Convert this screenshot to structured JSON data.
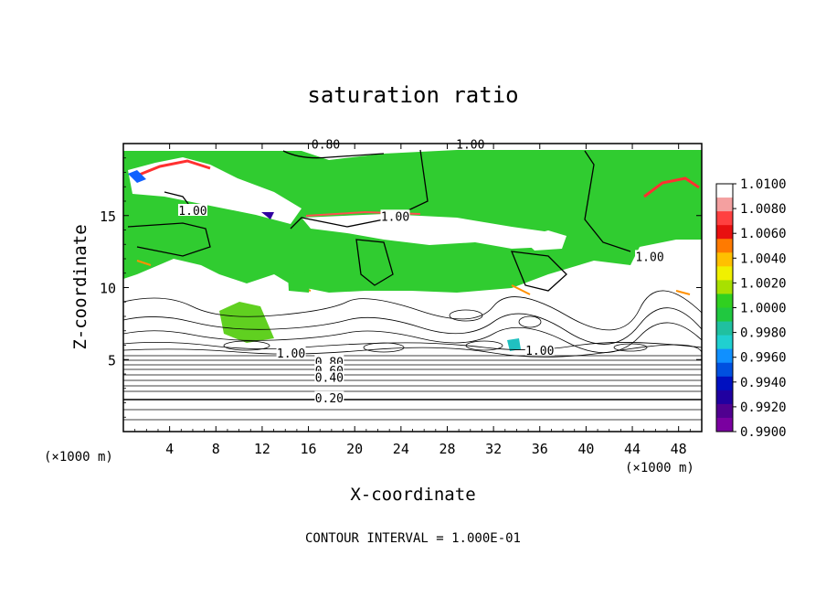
{
  "chart_data": {
    "type": "contour",
    "title": "saturation ratio",
    "xlabel": "X-coordinate",
    "ylabel": "Z-coordinate",
    "x_units_left": "(×1000 m)",
    "x_units_right": "(×1000 m)",
    "xlim": [
      0,
      50
    ],
    "ylim": [
      0,
      20
    ],
    "x_ticks": [
      4,
      8,
      12,
      16,
      20,
      24,
      28,
      32,
      36,
      40,
      44,
      48
    ],
    "y_ticks": [
      5,
      10,
      15
    ],
    "footer": "CONTOUR INTERVAL = 1.000E-01",
    "contour_labels": [
      {
        "text": "0.80",
        "x": 17.5,
        "z": 19.9
      },
      {
        "text": "1.00",
        "x": 30.0,
        "z": 19.9
      },
      {
        "text": "1.00",
        "x": 6.0,
        "z": 15.3
      },
      {
        "text": "1.00",
        "x": 23.5,
        "z": 14.9
      },
      {
        "text": "1.00",
        "x": 45.5,
        "z": 12.1
      },
      {
        "text": "1.00",
        "x": 14.5,
        "z": 5.4
      },
      {
        "text": "1.00",
        "x": 36.0,
        "z": 5.6
      },
      {
        "text": "0.80",
        "x": 17.8,
        "z": 4.8
      },
      {
        "text": "0.60",
        "x": 17.8,
        "z": 4.2
      },
      {
        "text": "0.40",
        "x": 17.8,
        "z": 3.7
      },
      {
        "text": "0.20",
        "x": 17.8,
        "z": 2.3
      }
    ],
    "colorbar": {
      "min": 0.99,
      "max": 1.01,
      "labels": [
        "1.0100",
        "1.0080",
        "1.0060",
        "1.0040",
        "1.0020",
        "1.0000",
        "0.9980",
        "0.9960",
        "0.9940",
        "0.9920",
        "0.9900"
      ],
      "colors": [
        "#ffffff",
        "#f4a0a0",
        "#ff4040",
        "#e81010",
        "#ff7a00",
        "#ffc000",
        "#f0f000",
        "#a8e000",
        "#30d020",
        "#20c840",
        "#20c0a0",
        "#20d0d0",
        "#1090ff",
        "#0050e0",
        "#0010c0",
        "#2000a0",
        "#500090",
        "#7a00a0"
      ]
    }
  }
}
